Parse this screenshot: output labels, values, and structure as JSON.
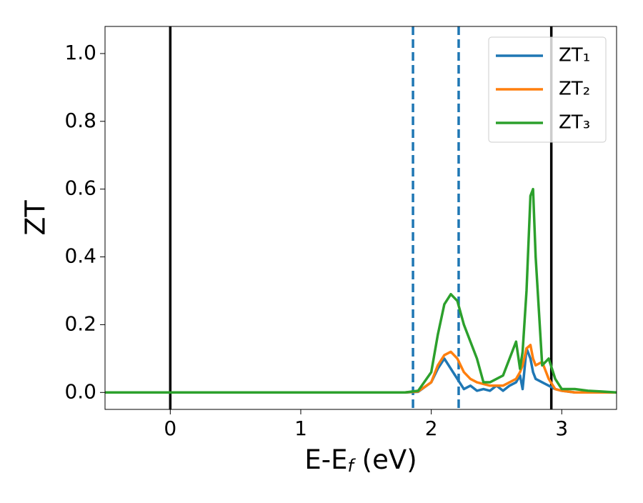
{
  "chart_data": {
    "type": "line",
    "xlabel": [
      "E-E",
      "f",
      " (eV)"
    ],
    "ylabel": "ZT",
    "x": [
      -0.5,
      0,
      1,
      1.8,
      1.9,
      2.0,
      2.05,
      2.1,
      2.15,
      2.2,
      2.25,
      2.3,
      2.35,
      2.4,
      2.45,
      2.5,
      2.55,
      2.6,
      2.65,
      2.68,
      2.7,
      2.73,
      2.76,
      2.78,
      2.8,
      2.85,
      2.9,
      2.95,
      3.0,
      3.1,
      3.2,
      3.3,
      3.42
    ],
    "series": [
      {
        "name": "ZT₁",
        "color": "#1f77b4",
        "values": [
          0,
          0,
          0,
          0,
          0.002,
          0.03,
          0.07,
          0.1,
          0.07,
          0.04,
          0.01,
          0.02,
          0.005,
          0.01,
          0.005,
          0.02,
          0.005,
          0.02,
          0.03,
          0.05,
          0.01,
          0.13,
          0.1,
          0.06,
          0.04,
          0.03,
          0.02,
          0.01,
          0.005,
          0,
          0,
          0,
          0
        ]
      },
      {
        "name": "ZT₂",
        "color": "#ff7f0e",
        "values": [
          0,
          0,
          0,
          0,
          0.003,
          0.03,
          0.08,
          0.11,
          0.12,
          0.1,
          0.06,
          0.04,
          0.03,
          0.025,
          0.02,
          0.02,
          0.02,
          0.03,
          0.04,
          0.06,
          0.08,
          0.13,
          0.14,
          0.1,
          0.08,
          0.09,
          0.04,
          0.01,
          0.005,
          0,
          0,
          0,
          0
        ]
      },
      {
        "name": "ZT₃",
        "color": "#2ca02c",
        "values": [
          0,
          0,
          0,
          0,
          0.005,
          0.06,
          0.17,
          0.26,
          0.29,
          0.27,
          0.2,
          0.15,
          0.1,
          0.03,
          0.03,
          0.04,
          0.05,
          0.1,
          0.15,
          0.07,
          0.12,
          0.3,
          0.58,
          0.6,
          0.4,
          0.08,
          0.1,
          0.04,
          0.01,
          0.01,
          0.005,
          0.003,
          0
        ]
      }
    ],
    "vlines": [
      {
        "x": 0,
        "color": "#000000",
        "style": "solid"
      },
      {
        "x": 2.92,
        "color": "#000000",
        "style": "solid"
      },
      {
        "x": 1.86,
        "color": "#1f77b4",
        "style": "dashed"
      },
      {
        "x": 2.21,
        "color": "#1f77b4",
        "style": "dashed"
      }
    ],
    "xlim": [
      -0.5,
      3.42
    ],
    "ylim": [
      -0.05,
      1.08
    ],
    "xticks": [
      0,
      1,
      2,
      3
    ],
    "yticks": [
      {
        "value": 0,
        "label": "0.0"
      },
      0.2,
      0.4,
      0.6,
      0.8,
      {
        "value": 1,
        "label": "1.0"
      }
    ],
    "legend": "upper right"
  }
}
